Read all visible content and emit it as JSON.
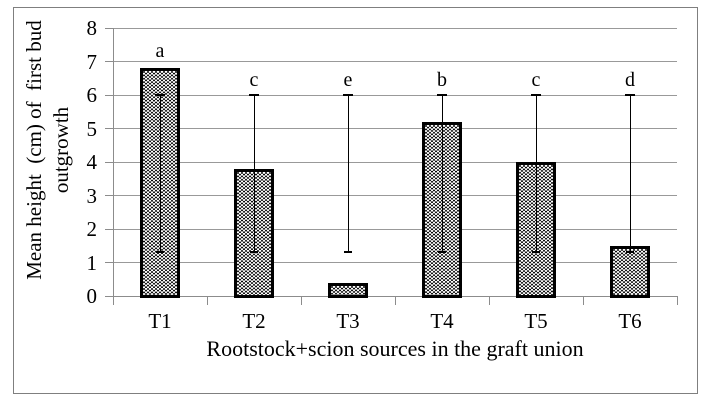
{
  "figure": {
    "background": "#ffffff",
    "border_color": "#7f7f7f"
  },
  "chart_data": {
    "type": "bar",
    "title": "",
    "xlabel": "Rootstock+scion sources in the graft union",
    "ylabel": "Mean height  (cm) of  first bud outgrowth",
    "ylabel_lines": [
      "Mean height  (cm) of  first bud",
      "outgrowth"
    ],
    "categories": [
      "T1",
      "T2",
      "T3",
      "T4",
      "T5",
      "T6"
    ],
    "values": [
      6.8,
      3.8,
      0.4,
      5.2,
      4.0,
      1.5
    ],
    "sig_letters": [
      "a",
      "c",
      "e",
      "b",
      "c",
      "d"
    ],
    "letter_y": [
      7.3,
      6.45,
      6.45,
      6.45,
      6.45,
      6.45
    ],
    "error_whisker_top": [
      6.0,
      6.0,
      6.0,
      6.0,
      6.0,
      6.0
    ],
    "error_whisker_bottom": [
      1.3,
      1.3,
      1.3,
      1.3,
      1.3,
      1.3
    ],
    "ylim": [
      0,
      8
    ],
    "yticks": [
      0,
      1,
      2,
      3,
      4,
      5,
      6,
      7,
      8
    ],
    "grid": true,
    "legend": "none",
    "bar_style": {
      "fill": "white with black dot pattern",
      "border": "#000000"
    },
    "colors": {
      "grid": "#999999",
      "axis": "#8c8c8c",
      "text": "#000000",
      "error_bar": "#000000"
    }
  }
}
